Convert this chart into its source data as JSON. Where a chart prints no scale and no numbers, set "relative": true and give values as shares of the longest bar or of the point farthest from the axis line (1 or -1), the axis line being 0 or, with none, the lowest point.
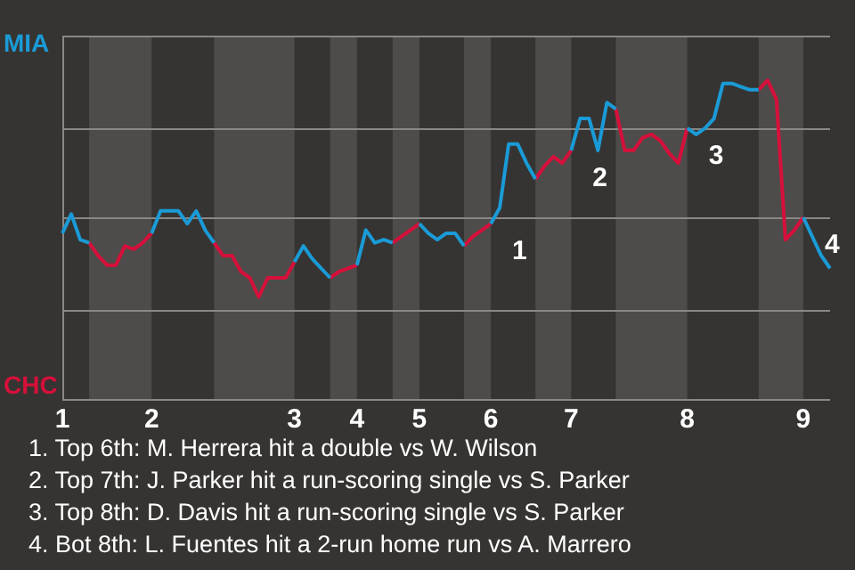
{
  "chart_data": {
    "type": "line",
    "relative": true,
    "categories": [
      "1",
      null,
      null,
      null,
      null,
      null,
      null,
      null,
      null,
      null,
      "2",
      null,
      null,
      null,
      null,
      null,
      null,
      null,
      null,
      null,
      null,
      null,
      null,
      null,
      null,
      null,
      "3",
      null,
      null,
      null,
      null,
      null,
      null,
      "4",
      null,
      null,
      null,
      null,
      null,
      null,
      "5",
      null,
      null,
      null,
      null,
      null,
      null,
      null,
      "6",
      null,
      null,
      null,
      null,
      null,
      null,
      null,
      null,
      "7",
      null,
      null,
      null,
      null,
      null,
      null,
      null,
      null,
      null,
      null,
      null,
      null,
      "8",
      null,
      null,
      null,
      null,
      null,
      null,
      null,
      null,
      null,
      null,
      null,
      null,
      "9",
      null,
      null,
      null
    ],
    "series": [
      {
        "color": "#1a9bd7",
        "values": [
          0.52,
          0.58,
          0.5,
          0.49,
          null,
          null,
          null,
          null,
          null,
          null,
          0.52,
          0.59,
          0.59,
          0.59,
          0.55,
          0.59,
          0.53,
          0.49,
          null,
          null,
          null,
          null,
          null,
          null,
          null,
          null,
          0.43,
          0.48,
          0.44,
          0.41,
          0.38,
          null,
          null,
          0.42,
          0.53,
          0.49,
          0.5,
          0.49,
          null,
          null,
          0.55,
          0.52,
          0.5,
          0.52,
          0.52,
          0.48,
          null,
          null,
          0.55,
          0.6,
          0.8,
          0.8,
          0.74,
          0.69,
          null,
          null,
          null,
          0.78,
          0.88,
          0.88,
          0.78,
          0.93,
          0.91,
          null,
          null,
          null,
          null,
          null,
          null,
          null,
          0.85,
          0.83,
          0.85,
          0.88,
          0.99,
          0.99,
          0.98,
          0.97,
          0.97,
          null,
          null,
          null,
          null,
          0.57,
          0.51,
          0.45,
          0.41
        ]
      },
      {
        "color": "#d6103b",
        "values": [
          null,
          null,
          null,
          0.49,
          0.45,
          0.42,
          0.42,
          0.48,
          0.47,
          0.49,
          0.52,
          null,
          null,
          null,
          null,
          null,
          null,
          0.49,
          0.45,
          0.45,
          0.4,
          0.38,
          0.32,
          0.38,
          0.38,
          0.38,
          0.43,
          null,
          null,
          null,
          0.38,
          0.4,
          0.41,
          0.42,
          null,
          null,
          null,
          0.49,
          0.51,
          0.53,
          0.55,
          null,
          null,
          null,
          null,
          0.48,
          0.51,
          0.53,
          0.55,
          null,
          null,
          null,
          null,
          0.69,
          0.73,
          0.76,
          0.74,
          0.78,
          null,
          null,
          null,
          null,
          0.91,
          0.78,
          0.78,
          0.82,
          0.83,
          0.81,
          0.77,
          0.74,
          0.85,
          null,
          null,
          null,
          null,
          null,
          null,
          null,
          0.97,
          1,
          0.94,
          0.5,
          0.53,
          0.57,
          null,
          null,
          null
        ]
      }
    ],
    "marker": "none",
    "ref_lines": [
      {
        "axis": "y",
        "value": 0.28,
        "color": "#8a8886"
      },
      {
        "axis": "y",
        "value": 0.57,
        "color": "#8a8886"
      },
      {
        "axis": "y",
        "value": 0.85,
        "color": "#8a8886"
      },
      {
        "axis": "y",
        "value": 1.14,
        "color": "#8a8886"
      }
    ],
    "annotations": [
      "MIA",
      "CHC",
      {
        "text": "1",
        "x": "6",
        "y": 0.55
      },
      {
        "text": "2",
        "x": "7",
        "y": 0.78
      },
      {
        "text": "3",
        "x": "8",
        "y": 0.85
      },
      {
        "text": "4",
        "x": "9",
        "y": 0.57
      },
      "1. Top 6th: M. Herrera hit a double vs W. Wilson",
      "2. Top 7th: J. Parker hit a run-scoring single vs S. Parker",
      "3. Top 8th: D. Davis hit a run-scoring single vs S. Parker",
      "4. Bot 8th: L. Fuentes hit a 2-run home run vs A. Marrero"
    ]
  }
}
